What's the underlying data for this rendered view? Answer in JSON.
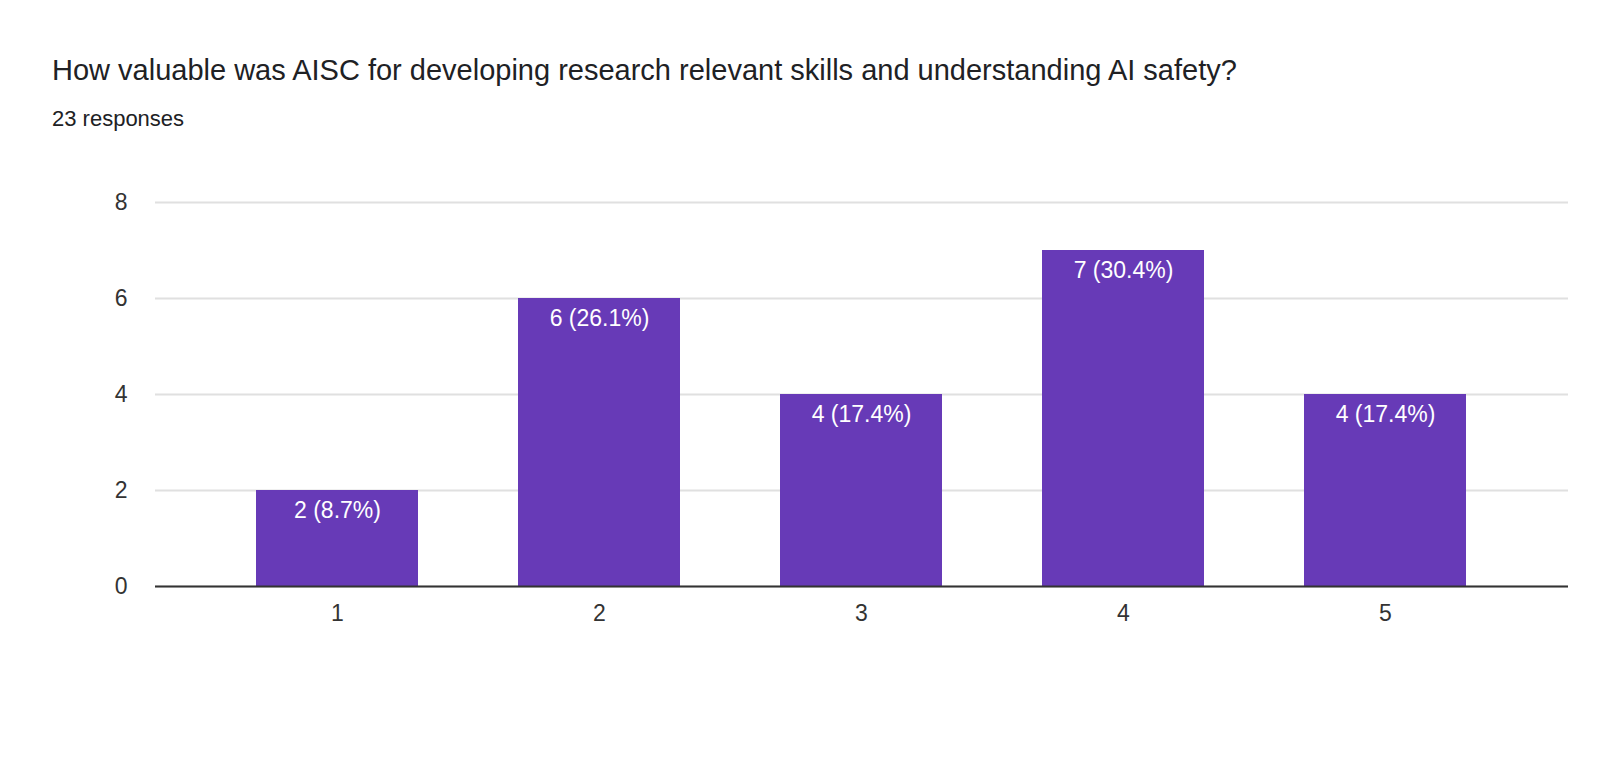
{
  "chart_data": {
    "type": "bar",
    "title": "How valuable was AISC for developing research relevant skills and understanding AI safety?",
    "subtitle": "23 responses",
    "categories": [
      "1",
      "2",
      "3",
      "4",
      "5"
    ],
    "values": [
      2,
      6,
      4,
      7,
      4
    ],
    "value_labels": [
      "2 (8.7%)",
      "6 (26.1%)",
      "4 (17.4%)",
      "7 (30.4%)",
      "4 (17.4%)"
    ],
    "color": "#673ab7",
    "ylim": [
      0,
      8
    ],
    "yticks": [
      0,
      2,
      4,
      6,
      8
    ],
    "grid": true,
    "data_labels": true
  }
}
